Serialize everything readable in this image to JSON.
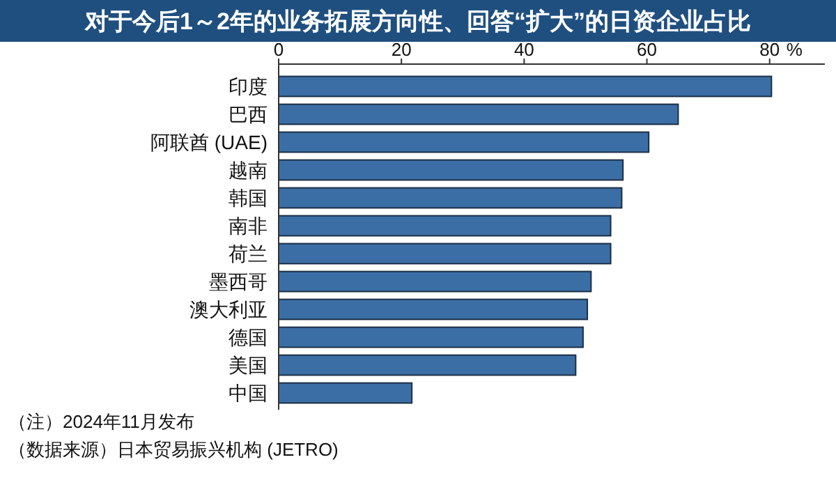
{
  "chart_data": {
    "type": "bar",
    "orientation": "horizontal",
    "title": "对于今后1～2年的业务拓展方向性、回答“扩大”的日资企业占比",
    "xlabel": "%",
    "categories": [
      "印度",
      "巴西",
      "阿联酋 (UAE)",
      "越南",
      "韩国",
      "南非",
      "荷兰",
      "墨西哥",
      "澳大利亚",
      "德国",
      "美国",
      "中国"
    ],
    "values": [
      80.3,
      65.1,
      60.3,
      56.1,
      55.9,
      54.1,
      54.1,
      50.9,
      50.3,
      49.6,
      48.4,
      21.7
    ],
    "color": "#3b6ea5",
    "xlim": [
      0,
      89
    ],
    "xticks": [
      0,
      20,
      40,
      60,
      80
    ],
    "grid": false,
    "annotations": [
      "（注）2024年11月发布",
      "（数据来源）日本贸易振兴机构 (JETRO)"
    ]
  }
}
